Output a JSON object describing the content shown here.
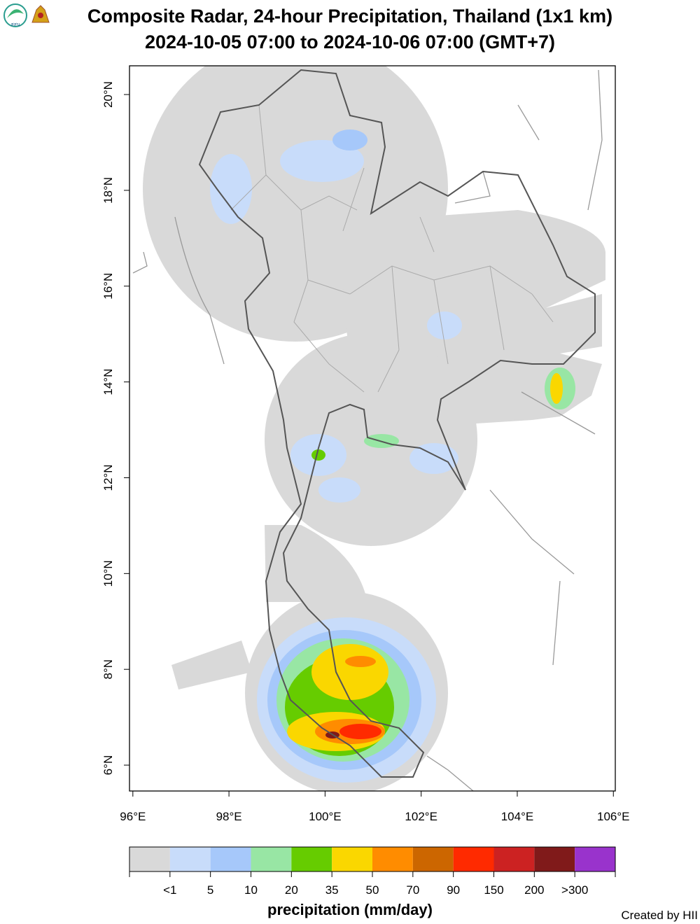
{
  "title": "Composite Radar, 24-hour Precipitation, Thailand (1x1 km)",
  "subtitle": "2024-10-05 07:00 to 2024-10-06 07:00 (GMT+7)",
  "logo_text": "สสน",
  "map": {
    "xlim": [
      95.93,
      106.04
    ],
    "ylim": [
      5.46,
      20.6
    ],
    "xticks": [
      {
        "value": 96,
        "label": "96°E"
      },
      {
        "value": 98,
        "label": "98°E"
      },
      {
        "value": 100,
        "label": "100°E"
      },
      {
        "value": 102,
        "label": "102°E"
      },
      {
        "value": 104,
        "label": "104°E"
      },
      {
        "value": 106,
        "label": "106°E"
      }
    ],
    "yticks": [
      {
        "value": 6,
        "label": "6°N"
      },
      {
        "value": 8,
        "label": "8°N"
      },
      {
        "value": 10,
        "label": "10°N"
      },
      {
        "value": 12,
        "label": "12°N"
      },
      {
        "value": 14,
        "label": "14°N"
      },
      {
        "value": 16,
        "label": "16°N"
      },
      {
        "value": 18,
        "label": "18°N"
      },
      {
        "value": 20,
        "label": "20°N"
      }
    ]
  },
  "legend": {
    "title": "precipitation (mm/day)",
    "colors": [
      "#d9d9d9",
      "#c8dcfa",
      "#a6c8fa",
      "#98e6a4",
      "#66cc00",
      "#fad700",
      "#ff8c00",
      "#cc6600",
      "#ff2a00",
      "#cc2222",
      "#801a1a",
      "#9933cc"
    ],
    "labels": [
      "<1",
      "5",
      "10",
      "20",
      "35",
      "50",
      "70",
      "90",
      "150",
      "200",
      ">300"
    ]
  },
  "credit": "Created by HII"
}
